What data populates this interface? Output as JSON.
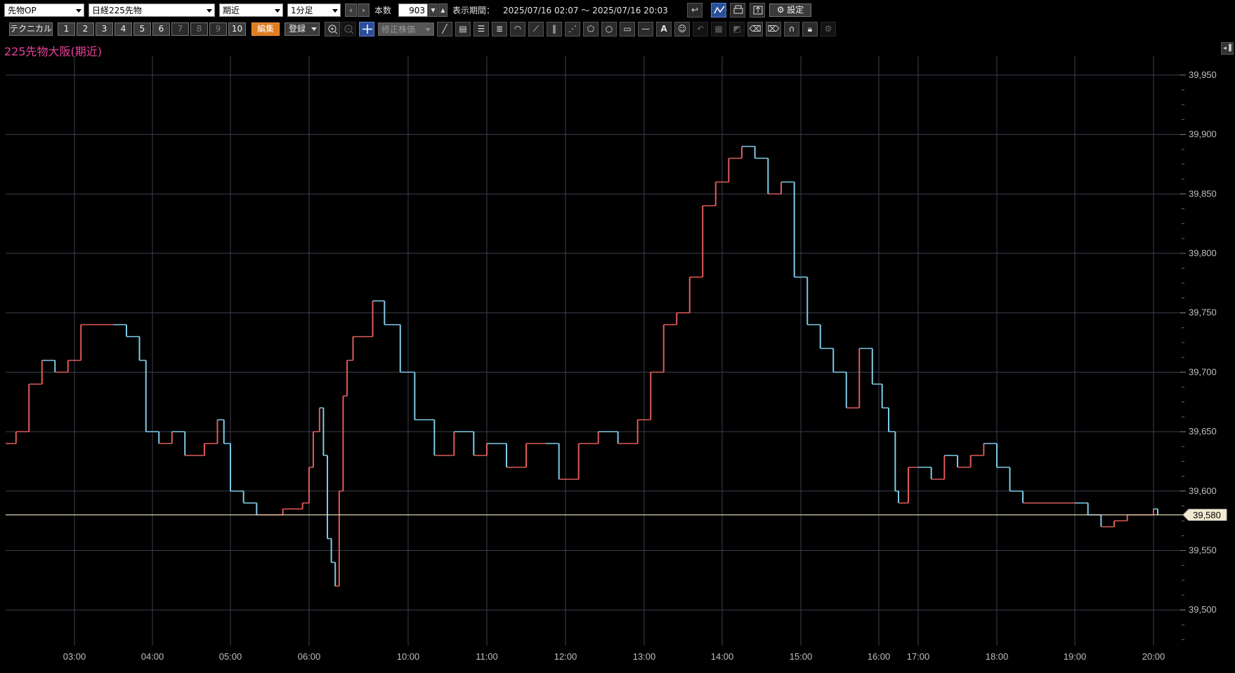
{
  "toolbar": {
    "market_select": "先物OP",
    "product_select": "日経225先物",
    "contract_select": "期近",
    "interval_select": "1分足",
    "bars_label": "本数",
    "bars_value": "903",
    "period_label": "表示期間：",
    "period_value": "2025/07/16 02:07 ～ 2025/07/16 20:03",
    "settings_label": "設定"
  },
  "toolbar2": {
    "technical_label": "テクニカル",
    "presets": [
      "1",
      "2",
      "3",
      "4",
      "5",
      "6",
      "7",
      "8",
      "9",
      "10"
    ],
    "edit_label": "編集",
    "register_label": "登録",
    "adjusted_price_label": "修正株価",
    "drawing_tools": [
      "trend-line",
      "ruler",
      "horizontal-lines",
      "parallel-lines",
      "arc",
      "fan",
      "vertical-lines",
      "regression-fan",
      "pentagon",
      "circle",
      "rectangle",
      "horizontal-line",
      "text",
      "icon",
      "undo",
      "delete",
      "fill",
      "eraser",
      "eraser-all",
      "magnet",
      "lock",
      "gear"
    ]
  },
  "chart_title": "225先物大阪(期近)",
  "current_price_label": "39,580",
  "colors": {
    "up": "#e05a5a",
    "down": "#7ecbe8",
    "grid": "#3d4150",
    "price_line": "#f2e6c4",
    "title": "#e8429a"
  },
  "chart_data": {
    "type": "line",
    "title": "225先物大阪(期近)",
    "y_ticks": [
      "39,500",
      "39,550",
      "39,600",
      "39,650",
      "39,700",
      "39,750",
      "39,800",
      "39,850",
      "39,900",
      "39,950"
    ],
    "ylim": [
      39470,
      39960
    ],
    "x_ticks": [
      "03:00",
      "04:00",
      "05:00",
      "06:00",
      "10:00",
      "11:00",
      "12:00",
      "13:00",
      "14:00",
      "15:00",
      "16:00",
      "17:00",
      "18:00",
      "19:00",
      "20:00"
    ],
    "current_price": 39580,
    "series": [
      {
        "points": [
          [
            "02:07",
            39640
          ],
          [
            "02:15",
            39650
          ],
          [
            "02:25",
            39690
          ],
          [
            "02:35",
            39710
          ],
          [
            "02:45",
            39700
          ],
          [
            "02:55",
            39710
          ],
          [
            "03:05",
            39740
          ],
          [
            "03:15",
            39740
          ],
          [
            "03:30",
            39740
          ],
          [
            "03:40",
            39730
          ],
          [
            "03:50",
            39710
          ],
          [
            "03:55",
            39650
          ],
          [
            "04:05",
            39640
          ],
          [
            "04:15",
            39650
          ],
          [
            "04:25",
            39630
          ],
          [
            "04:40",
            39640
          ],
          [
            "04:50",
            39660
          ],
          [
            "04:55",
            39640
          ],
          [
            "05:00",
            39600
          ],
          [
            "05:10",
            39590
          ],
          [
            "05:20",
            39580
          ],
          [
            "05:40",
            39585
          ],
          [
            "05:55",
            39590
          ],
          [
            "06:00",
            39620
          ],
          [
            "06:05",
            39650
          ],
          [
            "06:15",
            39670
          ],
          [
            "06:25",
            39630
          ],
          [
            "06:35",
            39560
          ],
          [
            "06:45",
            39540
          ],
          [
            "06:55",
            39520
          ],
          [
            "07:05",
            39600
          ],
          [
            "07:15",
            39680
          ],
          [
            "07:25",
            39710
          ],
          [
            "07:40",
            39730
          ],
          [
            "08:30",
            39760
          ],
          [
            "09:00",
            39740
          ],
          [
            "09:40",
            39700
          ],
          [
            "10:05",
            39660
          ],
          [
            "10:20",
            39630
          ],
          [
            "10:35",
            39650
          ],
          [
            "10:50",
            39630
          ],
          [
            "11:00",
            39640
          ],
          [
            "11:15",
            39620
          ],
          [
            "11:30",
            39640
          ],
          [
            "11:45",
            39640
          ],
          [
            "11:55",
            39610
          ],
          [
            "12:10",
            39640
          ],
          [
            "12:25",
            39650
          ],
          [
            "12:40",
            39640
          ],
          [
            "12:55",
            39660
          ],
          [
            "13:05",
            39700
          ],
          [
            "13:15",
            39740
          ],
          [
            "13:25",
            39750
          ],
          [
            "13:35",
            39780
          ],
          [
            "13:45",
            39840
          ],
          [
            "13:55",
            39860
          ],
          [
            "14:05",
            39880
          ],
          [
            "14:15",
            39890
          ],
          [
            "14:25",
            39880
          ],
          [
            "14:35",
            39850
          ],
          [
            "14:45",
            39860
          ],
          [
            "14:55",
            39780
          ],
          [
            "15:05",
            39740
          ],
          [
            "15:15",
            39720
          ],
          [
            "15:25",
            39700
          ],
          [
            "15:35",
            39670
          ],
          [
            "15:45",
            39720
          ],
          [
            "15:55",
            39690
          ],
          [
            "16:05",
            39670
          ],
          [
            "16:15",
            39650
          ],
          [
            "16:25",
            39600
          ],
          [
            "16:30",
            39590
          ],
          [
            "16:45",
            39620
          ],
          [
            "17:00",
            39620
          ],
          [
            "17:10",
            39610
          ],
          [
            "17:20",
            39630
          ],
          [
            "17:30",
            39620
          ],
          [
            "17:40",
            39630
          ],
          [
            "17:50",
            39640
          ],
          [
            "18:00",
            39620
          ],
          [
            "18:10",
            39600
          ],
          [
            "18:20",
            39590
          ],
          [
            "18:30",
            39590
          ],
          [
            "18:40",
            39590
          ],
          [
            "18:50",
            39590
          ],
          [
            "19:00",
            39590
          ],
          [
            "19:10",
            39580
          ],
          [
            "19:20",
            39570
          ],
          [
            "19:30",
            39575
          ],
          [
            "19:40",
            39580
          ],
          [
            "20:00",
            39585
          ],
          [
            "20:03",
            39580
          ]
        ]
      }
    ]
  }
}
